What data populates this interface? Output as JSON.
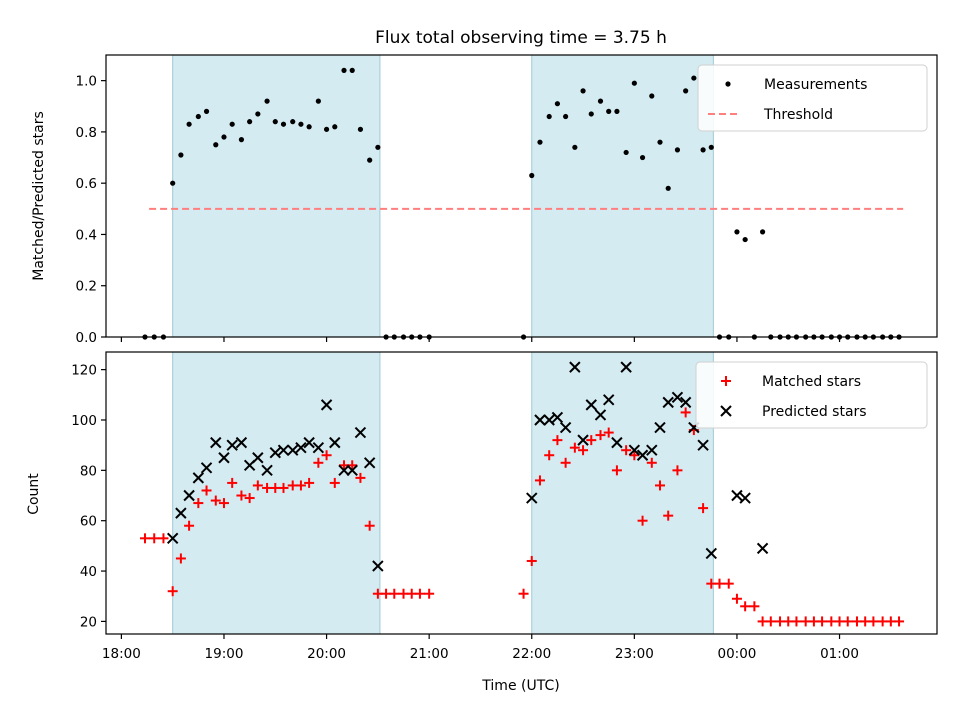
{
  "chart_data": [
    {
      "type": "scatter",
      "title": "Flux total observing time = 3.75 h",
      "xlabel": "",
      "ylabel": "Matched/Predicted stars",
      "ylim": [
        0,
        1.1
      ],
      "yticks": [
        "0.0",
        "0.2",
        "0.4",
        "0.6",
        "0.8",
        "1.0"
      ],
      "xlim_hours": [
        17.85,
        25.95
      ],
      "shaded_intervals": [
        [
          18.5,
          20.52
        ],
        [
          22.0,
          23.77
        ]
      ],
      "shade_color": "#add8e6",
      "legend": "top-right",
      "legend_entries": [
        "Measurements",
        "Threshold"
      ],
      "threshold": {
        "name": "Threshold",
        "y": 0.5,
        "x_range": [
          18.27,
          25.62
        ],
        "color": "#ff7f7f"
      },
      "series": [
        {
          "name": "Measurements",
          "color": "#000000",
          "marker": "dot",
          "x": [
            18.23,
            18.32,
            18.41,
            18.5,
            18.58,
            18.66,
            18.75,
            18.83,
            18.92,
            19.0,
            19.08,
            19.17,
            19.25,
            19.33,
            19.42,
            19.5,
            19.58,
            19.67,
            19.75,
            19.83,
            19.92,
            20.0,
            20.08,
            20.17,
            20.25,
            20.33,
            20.42,
            20.5,
            20.58,
            20.66,
            20.75,
            20.83,
            20.91,
            21.0,
            21.92,
            22.0,
            22.08,
            22.17,
            22.25,
            22.33,
            22.42,
            22.5,
            22.58,
            22.67,
            22.75,
            22.83,
            22.92,
            23.0,
            23.08,
            23.17,
            23.25,
            23.33,
            23.42,
            23.5,
            23.58,
            23.67,
            23.75,
            23.83,
            23.92,
            24.0,
            24.08,
            24.17,
            24.25,
            24.33,
            24.42,
            24.5,
            24.58,
            24.67,
            24.75,
            24.83,
            24.92,
            25.0,
            25.08,
            25.17,
            25.25,
            25.33,
            25.42,
            25.5,
            25.58
          ],
          "y": [
            0.0,
            0.0,
            0.0,
            0.6,
            0.71,
            0.83,
            0.86,
            0.88,
            0.75,
            0.78,
            0.83,
            0.77,
            0.84,
            0.87,
            0.92,
            0.84,
            0.83,
            0.84,
            0.83,
            0.82,
            0.92,
            0.81,
            0.82,
            1.04,
            1.04,
            0.81,
            0.69,
            0.74,
            0.0,
            0.0,
            0.0,
            0.0,
            0.0,
            0.0,
            0.0,
            0.63,
            0.76,
            0.86,
            0.91,
            0.86,
            0.74,
            0.96,
            0.87,
            0.92,
            0.88,
            0.88,
            0.72,
            0.99,
            0.7,
            0.94,
            0.76,
            0.58,
            0.73,
            0.96,
            1.01,
            0.73,
            0.74,
            0.0,
            0.0,
            0.41,
            0.38,
            0.0,
            0.41,
            0.0,
            0.0,
            0.0,
            0.0,
            0.0,
            0.0,
            0.0,
            0.0,
            0.0,
            0.0,
            0.0,
            0.0,
            0.0,
            0.0,
            0.0,
            0.0
          ]
        }
      ]
    },
    {
      "type": "scatter",
      "xlabel": "Time (UTC)",
      "ylabel": "Count",
      "ylim": [
        15,
        127
      ],
      "yticks": [
        "20",
        "40",
        "60",
        "80",
        "100",
        "120"
      ],
      "xticks": [
        "18:00",
        "19:00",
        "20:00",
        "21:00",
        "22:00",
        "23:00",
        "00:00",
        "01:00"
      ],
      "xlim_hours": [
        17.85,
        25.95
      ],
      "shaded_intervals": [
        [
          18.5,
          20.52
        ],
        [
          22.0,
          23.77
        ]
      ],
      "shade_color": "#add8e6",
      "legend": "top-right",
      "legend_entries": [
        "Matched stars",
        "Predicted stars"
      ],
      "series": [
        {
          "name": "Matched stars",
          "color": "#ff0000",
          "marker": "plus",
          "x": [
            18.23,
            18.32,
            18.41,
            18.5,
            18.58,
            18.66,
            18.75,
            18.83,
            18.92,
            19.0,
            19.08,
            19.17,
            19.25,
            19.33,
            19.42,
            19.5,
            19.58,
            19.67,
            19.75,
            19.83,
            19.92,
            20.0,
            20.08,
            20.17,
            20.25,
            20.33,
            20.42,
            20.5,
            20.58,
            20.66,
            20.75,
            20.83,
            20.91,
            21.0,
            21.92,
            22.0,
            22.08,
            22.17,
            22.25,
            22.33,
            22.42,
            22.5,
            22.58,
            22.67,
            22.75,
            22.83,
            22.92,
            23.0,
            23.08,
            23.17,
            23.25,
            23.33,
            23.42,
            23.5,
            23.58,
            23.67,
            23.75,
            23.83,
            23.92,
            24.0,
            24.08,
            24.17,
            24.25,
            24.33,
            24.42,
            24.5,
            24.58,
            24.67,
            24.75,
            24.83,
            24.92,
            25.0,
            25.08,
            25.17,
            25.25,
            25.33,
            25.42,
            25.5,
            25.58
          ],
          "y": [
            53,
            53,
            53,
            32,
            45,
            58,
            67,
            72,
            68,
            67,
            75,
            70,
            69,
            74,
            73,
            73,
            73,
            74,
            74,
            75,
            83,
            86,
            75,
            82,
            82,
            77,
            58,
            31,
            31,
            31,
            31,
            31,
            31,
            31,
            31,
            44,
            76,
            86,
            92,
            83,
            89,
            88,
            92,
            94,
            95,
            80,
            88,
            86,
            60,
            83,
            74,
            62,
            80,
            103,
            96,
            65,
            35,
            35,
            35,
            29,
            26,
            26,
            20,
            20,
            20,
            20,
            20,
            20,
            20,
            20,
            20,
            20,
            20,
            20,
            20,
            20,
            20,
            20,
            20
          ]
        },
        {
          "name": "Predicted stars",
          "color": "#000000",
          "marker": "x",
          "x": [
            18.5,
            18.58,
            18.66,
            18.75,
            18.83,
            18.92,
            19.0,
            19.08,
            19.17,
            19.25,
            19.33,
            19.42,
            19.5,
            19.58,
            19.67,
            19.75,
            19.83,
            19.92,
            20.0,
            20.08,
            20.17,
            20.25,
            20.33,
            20.42,
            20.5,
            22.0,
            22.08,
            22.17,
            22.25,
            22.33,
            22.42,
            22.5,
            22.58,
            22.67,
            22.75,
            22.83,
            22.92,
            23.0,
            23.08,
            23.17,
            23.25,
            23.33,
            23.42,
            23.5,
            23.58,
            23.67,
            23.75,
            24.0,
            24.08,
            24.25
          ],
          "y": [
            53,
            63,
            70,
            77,
            81,
            91,
            85,
            90,
            91,
            82,
            85,
            80,
            87,
            88,
            88,
            89,
            91,
            89,
            106,
            91,
            80,
            80,
            95,
            83,
            42,
            69,
            100,
            100,
            101,
            97,
            121,
            92,
            106,
            102,
            108,
            91,
            121,
            88,
            86,
            88,
            97,
            107,
            109,
            107,
            97,
            90,
            47,
            70,
            69,
            49
          ]
        }
      ]
    }
  ]
}
